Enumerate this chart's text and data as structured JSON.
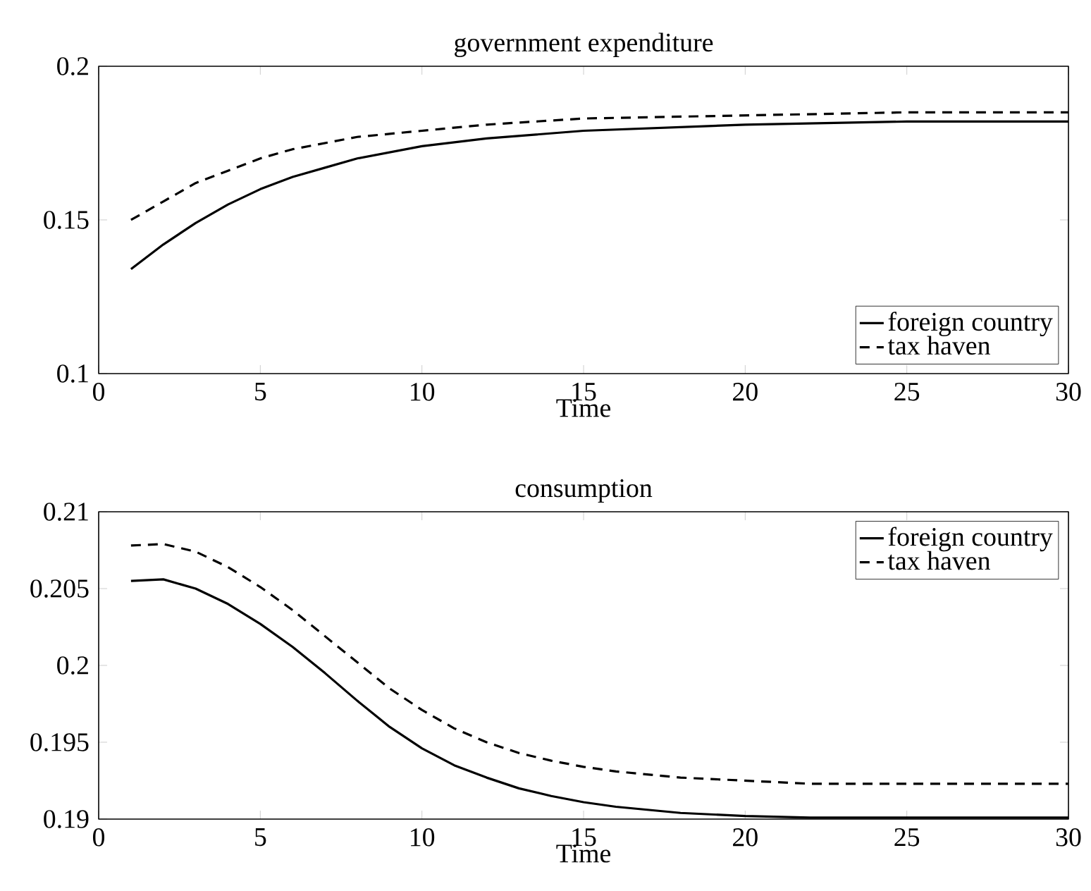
{
  "chart_data": [
    {
      "type": "line",
      "title": "government expenditure",
      "xlabel": "Time",
      "xlim": [
        0,
        30
      ],
      "xticks": [
        0,
        5,
        10,
        15,
        20,
        25,
        30
      ],
      "ylim": [
        0.1,
        0.2
      ],
      "yticks": [
        0.1,
        0.15,
        0.2
      ],
      "legend": "bottom right",
      "grid": false,
      "x": [
        1,
        2,
        3,
        4,
        5,
        6,
        7,
        8,
        9,
        10,
        12,
        15,
        20,
        25,
        30
      ],
      "series": [
        {
          "name": "foreign country",
          "color": "#000000",
          "line_style": "solid",
          "values": [
            0.134,
            0.142,
            0.149,
            0.155,
            0.16,
            0.164,
            0.167,
            0.17,
            0.172,
            0.174,
            0.1765,
            0.179,
            0.181,
            0.182,
            0.182
          ]
        },
        {
          "name": "tax haven",
          "color": "#000000",
          "line_style": "dashed",
          "values": [
            0.15,
            0.156,
            0.162,
            0.166,
            0.17,
            0.173,
            0.175,
            0.177,
            0.178,
            0.179,
            0.181,
            0.183,
            0.184,
            0.185,
            0.185
          ]
        }
      ]
    },
    {
      "type": "line",
      "title": "consumption",
      "xlabel": "Time",
      "xlim": [
        0,
        30
      ],
      "xticks": [
        0,
        5,
        10,
        15,
        20,
        25,
        30
      ],
      "ylim": [
        0.19,
        0.21
      ],
      "yticks": [
        0.19,
        0.195,
        0.2,
        0.205,
        0.21
      ],
      "legend": "top right",
      "grid": false,
      "x": [
        1,
        2,
        3,
        4,
        5,
        6,
        7,
        8,
        9,
        10,
        11,
        12,
        13,
        14,
        15,
        16,
        17,
        18,
        20,
        22,
        25,
        30
      ],
      "series": [
        {
          "name": "foreign country",
          "color": "#000000",
          "line_style": "solid",
          "values": [
            0.2055,
            0.2056,
            0.205,
            0.204,
            0.2027,
            0.2012,
            0.1995,
            0.1977,
            0.196,
            0.1946,
            0.1935,
            0.1927,
            0.192,
            0.1915,
            0.1911,
            0.1908,
            0.1906,
            0.1904,
            0.1902,
            0.1901,
            0.1901,
            0.1901
          ]
        },
        {
          "name": "tax haven",
          "color": "#000000",
          "line_style": "dashed",
          "values": [
            0.2078,
            0.2079,
            0.2074,
            0.2064,
            0.2051,
            0.2036,
            0.2019,
            0.2002,
            0.1985,
            0.1971,
            0.1959,
            0.195,
            0.1943,
            0.1938,
            0.1934,
            0.1931,
            0.1929,
            0.1927,
            0.1925,
            0.1923,
            0.1923,
            0.1923
          ]
        }
      ]
    }
  ]
}
